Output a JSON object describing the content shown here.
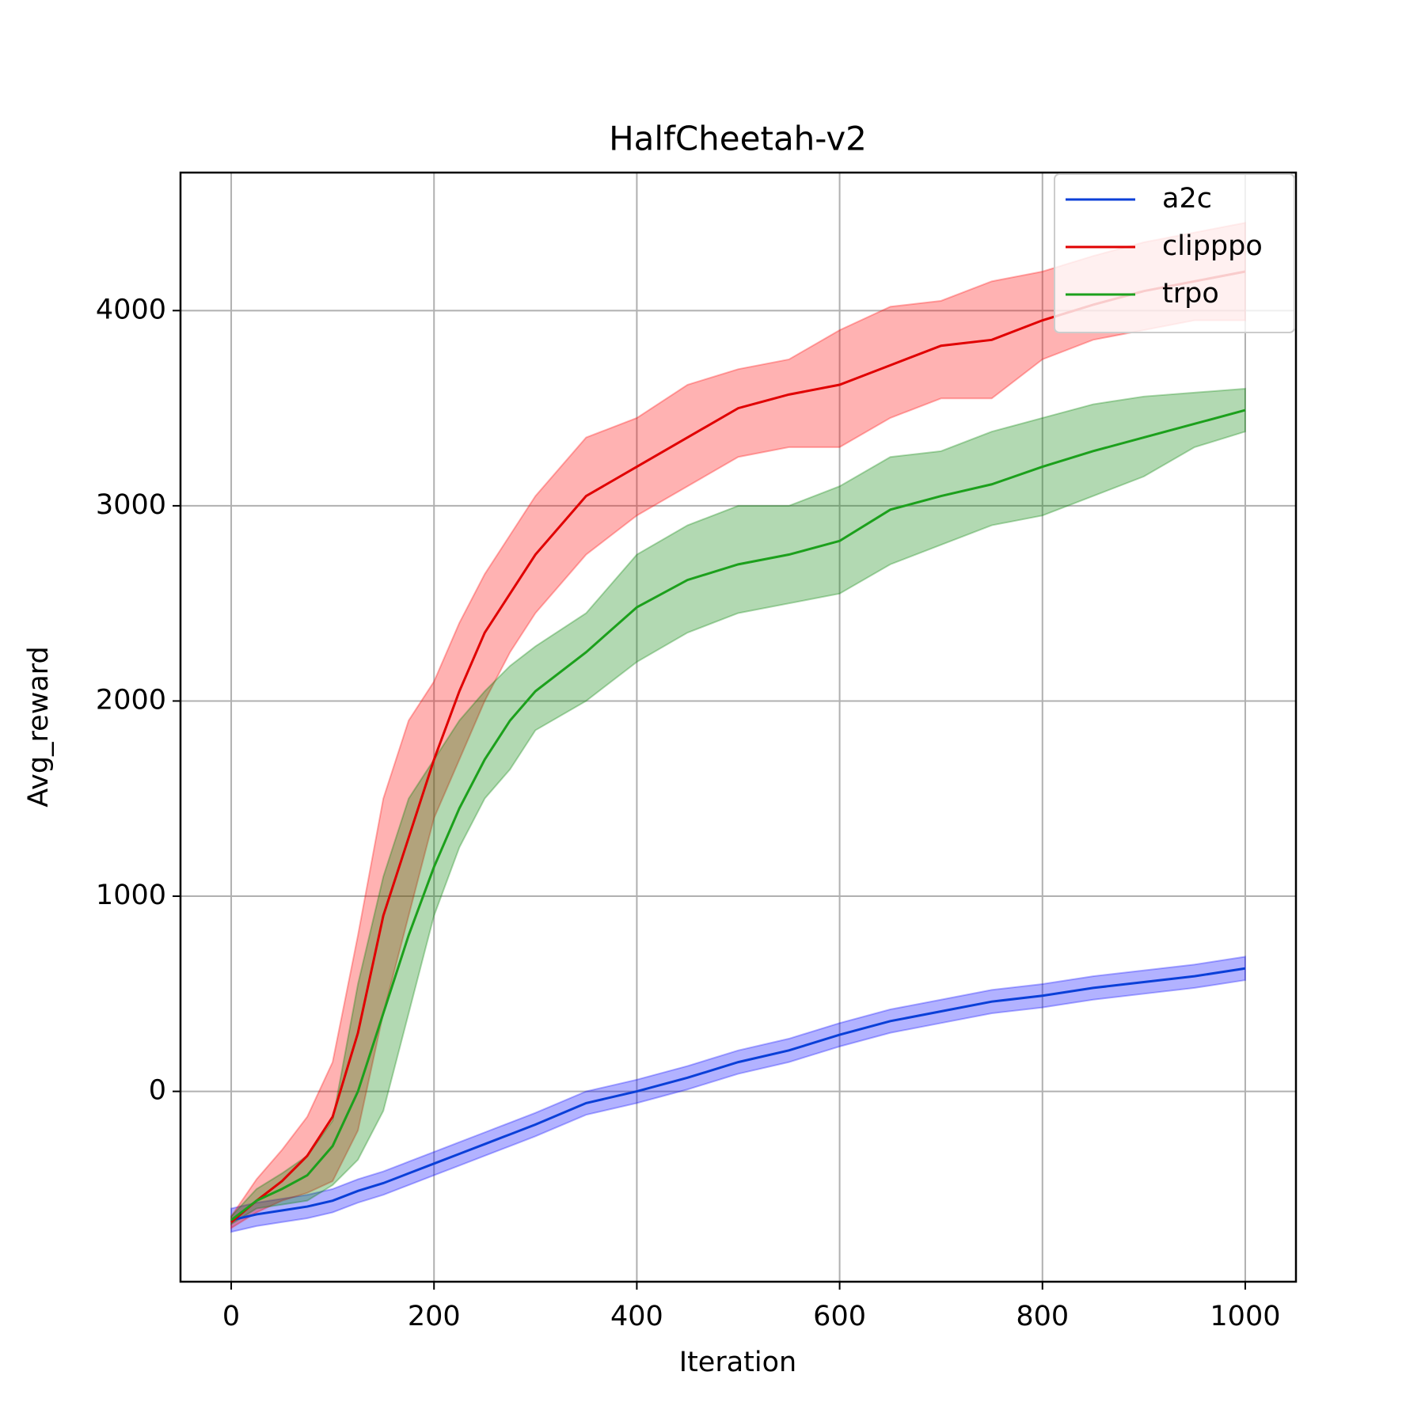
{
  "chart_data": {
    "type": "line",
    "title": "HalfCheetah-v2",
    "xlabel": "Iteration",
    "ylabel": "Avg_reward",
    "x": [
      0,
      25,
      50,
      75,
      100,
      125,
      150,
      175,
      200,
      225,
      250,
      275,
      300,
      350,
      400,
      450,
      500,
      550,
      600,
      650,
      700,
      750,
      800,
      850,
      900,
      950,
      1000
    ],
    "series": [
      {
        "name": "a2c",
        "color": "#0a3fd8",
        "band_color": "#0000ff",
        "values": [
          -660,
          -630,
          -610,
          -590,
          -560,
          -510,
          -470,
          -420,
          -370,
          -320,
          -270,
          -220,
          -170,
          -60,
          0,
          70,
          150,
          210,
          290,
          360,
          410,
          460,
          490,
          530,
          560,
          590,
          630
        ],
        "lower": [
          -720,
          -690,
          -670,
          -650,
          -620,
          -570,
          -530,
          -480,
          -430,
          -380,
          -330,
          -280,
          -230,
          -120,
          -60,
          10,
          90,
          150,
          230,
          300,
          350,
          400,
          430,
          470,
          500,
          530,
          570
        ],
        "upper": [
          -600,
          -570,
          -550,
          -530,
          -500,
          -450,
          -410,
          -360,
          -310,
          -260,
          -210,
          -160,
          -110,
          0,
          60,
          130,
          210,
          270,
          350,
          420,
          470,
          520,
          550,
          590,
          620,
          650,
          690
        ]
      },
      {
        "name": "clipppo",
        "color": "#e00000",
        "band_color": "#ff0000",
        "values": [
          -670,
          -560,
          -460,
          -330,
          -130,
          300,
          900,
          1300,
          1700,
          2050,
          2350,
          2550,
          2750,
          3050,
          3200,
          3350,
          3500,
          3570,
          3620,
          3720,
          3820,
          3850,
          3950,
          4030,
          4100,
          4150,
          4200
        ],
        "lower": [
          -700,
          -620,
          -560,
          -520,
          -460,
          -200,
          400,
          900,
          1400,
          1700,
          2000,
          2250,
          2450,
          2750,
          2950,
          3100,
          3250,
          3300,
          3300,
          3450,
          3550,
          3550,
          3750,
          3850,
          3900,
          3950,
          3950
        ],
        "upper": [
          -640,
          -450,
          -300,
          -130,
          150,
          800,
          1500,
          1900,
          2100,
          2400,
          2650,
          2850,
          3050,
          3350,
          3450,
          3620,
          3700,
          3750,
          3900,
          4020,
          4050,
          4150,
          4200,
          4280,
          4350,
          4400,
          4450
        ]
      },
      {
        "name": "trpo",
        "color": "#1ca01c",
        "band_color": "#008000",
        "values": [
          -660,
          -560,
          -500,
          -430,
          -280,
          0,
          400,
          800,
          1150,
          1450,
          1700,
          1900,
          2050,
          2250,
          2480,
          2620,
          2700,
          2750,
          2820,
          2980,
          3050,
          3110,
          3200,
          3280,
          3350,
          3420,
          3490
        ],
        "lower": [
          -680,
          -600,
          -580,
          -560,
          -480,
          -350,
          -100,
          400,
          900,
          1250,
          1500,
          1650,
          1850,
          2000,
          2200,
          2350,
          2450,
          2500,
          2550,
          2700,
          2800,
          2900,
          2950,
          3050,
          3150,
          3300,
          3380
        ],
        "upper": [
          -640,
          -500,
          -420,
          -330,
          -150,
          550,
          1100,
          1500,
          1700,
          1900,
          2050,
          2180,
          2280,
          2450,
          2750,
          2900,
          3000,
          3000,
          3100,
          3250,
          3280,
          3380,
          3450,
          3520,
          3560,
          3580,
          3600
        ]
      }
    ],
    "xlim": [
      -50,
      1050
    ],
    "ylim": [
      -975,
      4707
    ],
    "xticks": [
      0,
      200,
      400,
      600,
      800,
      1000
    ],
    "yticks": [
      0,
      1000,
      2000,
      3000,
      4000
    ],
    "grid": true,
    "legend": "upper right"
  }
}
